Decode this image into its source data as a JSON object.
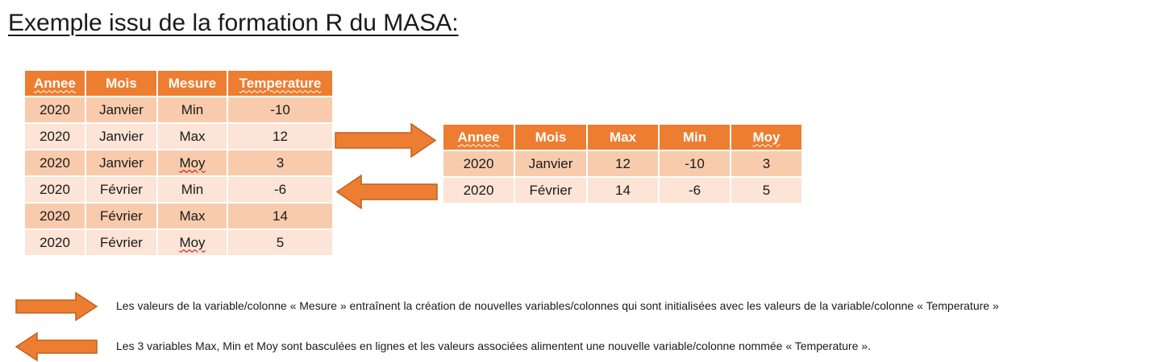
{
  "title": "Exemple issu de la formation R du MASA:",
  "colors": {
    "header": "#ed7d31",
    "row_dark": "#f8cbad",
    "row_light": "#fce4d6",
    "arrow_fill": "#ed7d31",
    "arrow_stroke": "#c0601f"
  },
  "long_table": {
    "headers": [
      "Annee",
      "Mois",
      "Mesure",
      "Temperature"
    ],
    "rows": [
      [
        "2020",
        "Janvier",
        "Min",
        "-10"
      ],
      [
        "2020",
        "Janvier",
        "Max",
        "12"
      ],
      [
        "2020",
        "Janvier",
        "Moy",
        "3"
      ],
      [
        "2020",
        "Février",
        "Min",
        "-6"
      ],
      [
        "2020",
        "Février",
        "Max",
        "14"
      ],
      [
        "2020",
        "Février",
        "Moy",
        "5"
      ]
    ]
  },
  "wide_table": {
    "headers": [
      "Annee",
      "Mois",
      "Max",
      "Min",
      "Moy"
    ],
    "rows": [
      [
        "2020",
        "Janvier",
        "12",
        "-10",
        "3"
      ],
      [
        "2020",
        "Février",
        "14",
        "-6",
        "5"
      ]
    ]
  },
  "legend": {
    "right_arrow_text": "Les valeurs de la variable/colonne « Mesure » entraînent la création de nouvelles variables/colonnes qui sont initialisées avec les valeurs de la variable/colonne « Temperature »",
    "left_arrow_text": "Les 3 variables Max, Min et Moy sont basculées en lignes et les valeurs associées alimentent une nouvelle variable/colonne nommée « Temperature »."
  }
}
